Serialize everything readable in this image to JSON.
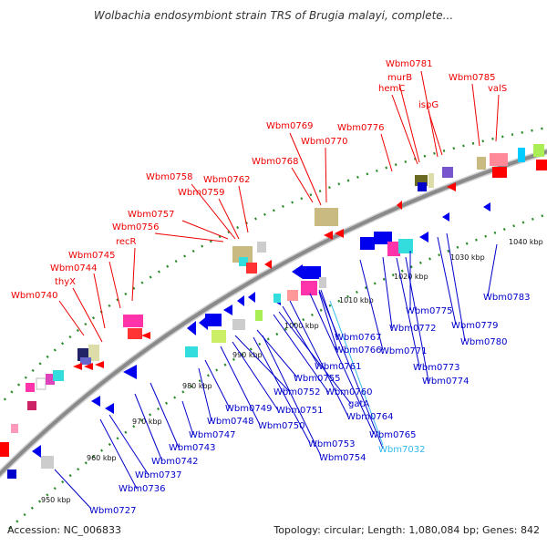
{
  "title": "Wolbachia endosymbiont strain TRS of Brugia malayi, complete...",
  "footer": {
    "accession": "Accession: NC_006833",
    "summary": "Topology: circular; Length: 1,080,084 bp; Genes: 842"
  },
  "colors": {
    "forward_label": "#ee0000",
    "reverse_label": "#0000cc",
    "rna_label": "#33bbee",
    "backbone": "#888888",
    "tick_dots": "#228822"
  },
  "kbp_ticks": [
    "950 kbp",
    "960 kbp",
    "970 kbp",
    "980 kbp",
    "990 kbp",
    "1000 kbp",
    "1010 kbp",
    "1020 kbp",
    "1030 kbp",
    "1040 kbp"
  ],
  "forward_labels": [
    "Wbm0740",
    "thyX",
    "Wbm0744",
    "Wbm0745",
    "recR",
    "Wbm0756",
    "Wbm0757",
    "Wbm0758",
    "Wbm0759",
    "Wbm0762",
    "Wbm0768",
    "Wbm0769",
    "Wbm0770",
    "Wbm0776",
    "hemC",
    "murB",
    "Wbm0781",
    "ispG",
    "Wbm0785",
    "valS"
  ],
  "reverse_labels": [
    "Wbm0727",
    "Wbm0736",
    "Wbm0737",
    "Wbm0742",
    "Wbm0743",
    "Wbm0747",
    "Wbm0748",
    "Wbm0749",
    "Wbm0750",
    "Wbm0751",
    "Wbm0752",
    "Wbm0753",
    "Wbm0754",
    "Wbm0755",
    "Wbm0760",
    "gatA",
    "Wbm0761",
    "Wbm0764",
    "Wbm0765",
    "Wbm7032",
    "Wbm0766",
    "Wbm0767",
    "Wbm0771",
    "Wbm0772",
    "Wbm0773",
    "Wbm0774",
    "Wbm0775",
    "Wbm0779",
    "Wbm0780",
    "Wbm0783"
  ]
}
